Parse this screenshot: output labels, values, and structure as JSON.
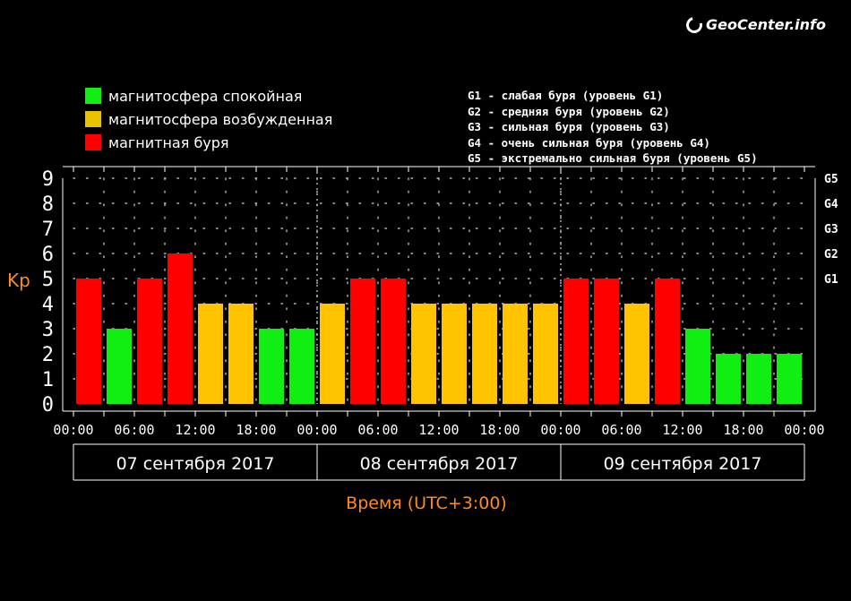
{
  "logo": {
    "text": "GeoCenter.info"
  },
  "legend": [
    {
      "label": "магнитосфера спокойная",
      "color": "#11ee11"
    },
    {
      "label": "магнитосфера возбужденная",
      "color": "#ffc300"
    },
    {
      "label": "магнитная буря",
      "color": "#ff0000"
    }
  ],
  "g_scale_legend": [
    "G1 - слабая буря (уровень G1)",
    "G2 - средняя буря (уровень G2)",
    "G3 - сильная буря (уровень G3)",
    "G4 - очень сильная буря (уровень G4)",
    "G5 - экстремально сильная буря (уровень G5)"
  ],
  "chart_data": {
    "type": "bar",
    "ylabel": "Kp",
    "xlabel": "Время (UTC+3:00)",
    "ylim": [
      0,
      9
    ],
    "y_ticks": [
      "0",
      "1",
      "2",
      "3",
      "4",
      "5",
      "6",
      "7",
      "8",
      "9"
    ],
    "right_ticks": [
      {
        "value": 5,
        "label": "G1"
      },
      {
        "value": 6,
        "label": "G2"
      },
      {
        "value": 7,
        "label": "G3"
      },
      {
        "value": 8,
        "label": "G4"
      },
      {
        "value": 9,
        "label": "G5"
      }
    ],
    "x_tick_labels": [
      "00:00",
      "06:00",
      "12:00",
      "18:00",
      "00:00",
      "06:00",
      "12:00",
      "18:00",
      "00:00",
      "06:00",
      "12:00",
      "18:00",
      "00:00"
    ],
    "days": [
      "07 сентября 2017",
      "08 сентября 2017",
      "09 сентября 2017"
    ],
    "values": [
      5,
      3,
      5,
      6,
      4,
      4,
      3,
      3,
      4,
      5,
      5,
      4,
      4,
      4,
      4,
      4,
      5,
      5,
      4,
      5,
      3,
      2,
      2,
      2
    ],
    "bar_status": [
      "storm",
      "quiet",
      "storm",
      "storm",
      "excited",
      "excited",
      "quiet",
      "quiet",
      "excited",
      "storm",
      "storm",
      "excited",
      "excited",
      "excited",
      "excited",
      "excited",
      "storm",
      "storm",
      "excited",
      "storm",
      "quiet",
      "quiet",
      "quiet",
      "quiet"
    ],
    "colors": {
      "quiet": "#11ee11",
      "excited": "#ffc300",
      "storm": "#ff0000",
      "axis": "#ffffff",
      "label": "#ff8c1a"
    },
    "grid": true
  }
}
